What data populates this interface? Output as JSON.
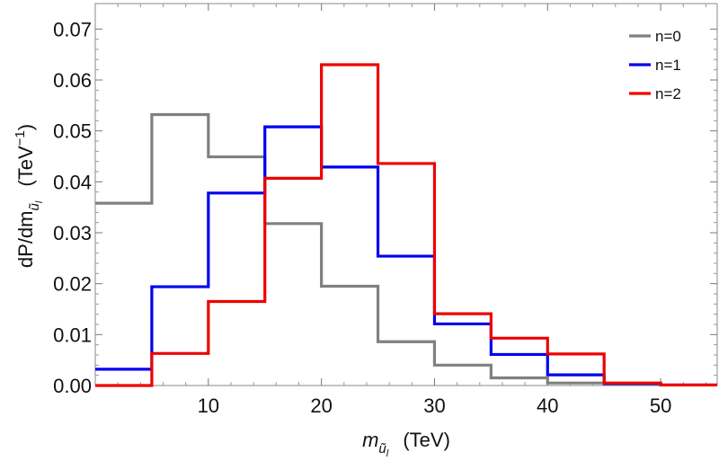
{
  "chart_data": {
    "type": "step",
    "xlabel": {
      "main": "m",
      "sub": "ũ",
      "subsub": "l",
      "unit": "(TeV)"
    },
    "ylabel": {
      "main": "dP/dm",
      "sub": "ũ",
      "subsub": "l",
      "unit_pre": "(TeV",
      "unit_exp": "−1",
      "unit_post": ")"
    },
    "xlim": [
      0,
      55
    ],
    "ylim": [
      0,
      0.075
    ],
    "xticks": [
      10,
      20,
      30,
      40,
      50
    ],
    "xtick_labels": [
      "10",
      "20",
      "30",
      "40",
      "50"
    ],
    "yticks": [
      0,
      0.01,
      0.02,
      0.03,
      0.04,
      0.05,
      0.06,
      0.07
    ],
    "ytick_labels": [
      "0.00",
      "0.01",
      "0.02",
      "0.03",
      "0.04",
      "0.05",
      "0.06",
      "0.07"
    ],
    "bin_edges": [
      0,
      5,
      10,
      15,
      20,
      25,
      30,
      35,
      40,
      45,
      50,
      55
    ],
    "series": [
      {
        "name": "n=0",
        "color": "#808080",
        "values": [
          0.0358,
          0.0532,
          0.0449,
          0.0318,
          0.0195,
          0.0086,
          0.004,
          0.0015,
          0.0005,
          0.0002,
          0.0001
        ]
      },
      {
        "name": "n=1",
        "color": "#0000ee",
        "values": [
          0.0032,
          0.0194,
          0.0378,
          0.0508,
          0.0429,
          0.0254,
          0.0121,
          0.0061,
          0.0021,
          0.0004,
          0.0001
        ]
      },
      {
        "name": "n=2",
        "color": "#ee0000",
        "values": [
          0.0,
          0.0063,
          0.0165,
          0.0407,
          0.063,
          0.0436,
          0.0141,
          0.0093,
          0.0062,
          0.0005,
          0.0001
        ]
      }
    ],
    "legend_position": "top-right"
  }
}
